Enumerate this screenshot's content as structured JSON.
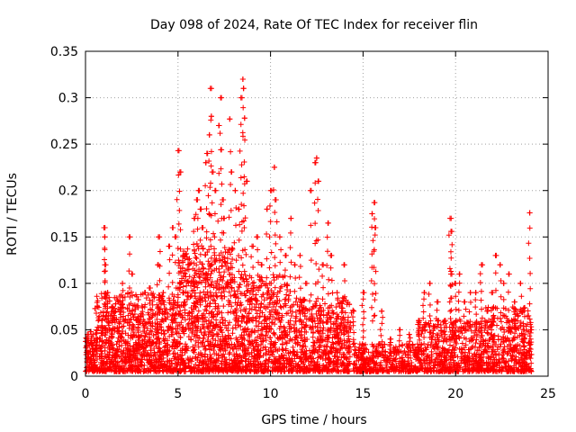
{
  "chart_data": {
    "type": "scatter",
    "title": "Day 098 of 2024, Rate Of TEC Index for receiver flin",
    "xlabel": "GPS time / hours",
    "ylabel": "ROTI / TECUs",
    "xlim": [
      0,
      25
    ],
    "ylim": [
      0,
      0.35
    ],
    "xticks": [
      0,
      5,
      10,
      15,
      20,
      25
    ],
    "xtick_labels": [
      "0",
      "5",
      "10",
      "15",
      "20",
      "25"
    ],
    "yticks": [
      0,
      0.05,
      0.1,
      0.15,
      0.2,
      0.25,
      0.3,
      0.35
    ],
    "ytick_labels": [
      "0",
      "0.05",
      "0.1",
      "0.15",
      "0.2",
      "0.25",
      "0.3",
      "0.35"
    ],
    "grid": true,
    "legend": "none",
    "marker": "+",
    "color": "#ff0000",
    "series": [
      {
        "values": [
          [
            0.1,
            0.045
          ],
          [
            0.3,
            0.048
          ],
          [
            0.6,
            0.04
          ],
          [
            0.9,
            0.06
          ],
          [
            1.0,
            0.16
          ],
          [
            1.05,
            0.15
          ],
          [
            1.1,
            0.12
          ],
          [
            1.2,
            0.09
          ],
          [
            1.5,
            0.07
          ],
          [
            1.8,
            0.08
          ],
          [
            2.0,
            0.1
          ],
          [
            2.4,
            0.15
          ],
          [
            2.5,
            0.11
          ],
          [
            2.8,
            0.06
          ],
          [
            3.2,
            0.09
          ],
          [
            3.5,
            0.095
          ],
          [
            3.9,
            0.12
          ],
          [
            4.0,
            0.15
          ],
          [
            4.2,
            0.09
          ],
          [
            4.5,
            0.14
          ],
          [
            4.7,
            0.16
          ],
          [
            4.9,
            0.15
          ],
          [
            5.0,
            0.243
          ],
          [
            5.1,
            0.22
          ],
          [
            5.3,
            0.13
          ],
          [
            5.6,
            0.12
          ],
          [
            5.9,
            0.17
          ],
          [
            6.0,
            0.19
          ],
          [
            6.1,
            0.2
          ],
          [
            6.2,
            0.18
          ],
          [
            6.3,
            0.16
          ],
          [
            6.5,
            0.23
          ],
          [
            6.6,
            0.24
          ],
          [
            6.7,
            0.26
          ],
          [
            6.75,
            0.31
          ],
          [
            6.8,
            0.28
          ],
          [
            6.9,
            0.22
          ],
          [
            7.0,
            0.2
          ],
          [
            7.2,
            0.27
          ],
          [
            7.3,
            0.3
          ],
          [
            7.35,
            0.244
          ],
          [
            7.4,
            0.19
          ],
          [
            7.5,
            0.17
          ],
          [
            7.8,
            0.277
          ],
          [
            7.9,
            0.22
          ],
          [
            8.1,
            0.2
          ],
          [
            8.3,
            0.18
          ],
          [
            8.4,
            0.3
          ],
          [
            8.5,
            0.32
          ],
          [
            8.55,
            0.31
          ],
          [
            8.6,
            0.278
          ],
          [
            8.7,
            0.21
          ],
          [
            9.0,
            0.14
          ],
          [
            9.3,
            0.15
          ],
          [
            9.5,
            0.12
          ],
          [
            9.8,
            0.18
          ],
          [
            10.0,
            0.2
          ],
          [
            10.2,
            0.225
          ],
          [
            10.3,
            0.19
          ],
          [
            10.5,
            0.15
          ],
          [
            10.8,
            0.13
          ],
          [
            11.1,
            0.17
          ],
          [
            11.3,
            0.12
          ],
          [
            11.6,
            0.13
          ],
          [
            11.9,
            0.1
          ],
          [
            12.2,
            0.2
          ],
          [
            12.4,
            0.23
          ],
          [
            12.5,
            0.235
          ],
          [
            12.6,
            0.21
          ],
          [
            12.8,
            0.12
          ],
          [
            13.1,
            0.165
          ],
          [
            13.3,
            0.13
          ],
          [
            13.6,
            0.09
          ],
          [
            14.0,
            0.12
          ],
          [
            14.5,
            0.07
          ],
          [
            15.0,
            0.09
          ],
          [
            15.5,
            0.175
          ],
          [
            15.6,
            0.187
          ],
          [
            15.65,
            0.16
          ],
          [
            16.0,
            0.07
          ],
          [
            16.5,
            0.04
          ],
          [
            17.0,
            0.05
          ],
          [
            17.5,
            0.045
          ],
          [
            18.0,
            0.06
          ],
          [
            18.3,
            0.09
          ],
          [
            18.6,
            0.1
          ],
          [
            19.0,
            0.08
          ],
          [
            19.4,
            0.06
          ],
          [
            19.7,
            0.17
          ],
          [
            19.75,
            0.156
          ],
          [
            19.8,
            0.11
          ],
          [
            20.0,
            0.1
          ],
          [
            20.2,
            0.11
          ],
          [
            20.5,
            0.08
          ],
          [
            20.8,
            0.09
          ],
          [
            21.1,
            0.09
          ],
          [
            21.4,
            0.12
          ],
          [
            21.7,
            0.07
          ],
          [
            22.0,
            0.09
          ],
          [
            22.2,
            0.13
          ],
          [
            22.4,
            0.12
          ],
          [
            22.6,
            0.1
          ],
          [
            22.9,
            0.11
          ],
          [
            23.2,
            0.08
          ],
          [
            23.5,
            0.1
          ],
          [
            23.7,
            0.05
          ],
          [
            24.0,
            0.176
          ],
          [
            24.05,
            0.05
          ]
        ]
      }
    ],
    "dense_band": [
      {
        "x_range": [
          0.0,
          0.5
        ],
        "y_range": [
          0.005,
          0.045
        ],
        "count": 80
      },
      {
        "x_range": [
          0.5,
          5.0
        ],
        "y_range": [
          0.005,
          0.09
        ],
        "count": 900
      },
      {
        "x_range": [
          5.0,
          8.0
        ],
        "y_range": [
          0.005,
          0.14
        ],
        "count": 700
      },
      {
        "x_range": [
          8.0,
          11.0
        ],
        "y_range": [
          0.005,
          0.11
        ],
        "count": 600
      },
      {
        "x_range": [
          11.0,
          14.5
        ],
        "y_range": [
          0.005,
          0.085
        ],
        "count": 600
      },
      {
        "x_range": [
          14.5,
          18.0
        ],
        "y_range": [
          0.005,
          0.035
        ],
        "count": 400
      },
      {
        "x_range": [
          18.0,
          21.5
        ],
        "y_range": [
          0.005,
          0.06
        ],
        "count": 500
      },
      {
        "x_range": [
          21.5,
          24.1
        ],
        "y_range": [
          0.005,
          0.075
        ],
        "count": 400
      }
    ]
  }
}
